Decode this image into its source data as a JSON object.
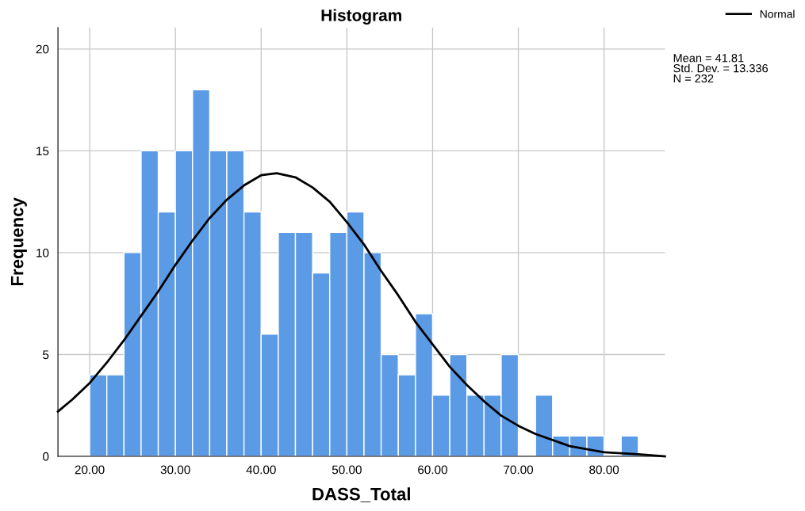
{
  "chart_data": {
    "type": "histogram",
    "title": "Histogram",
    "xlabel": "DASS_Total",
    "ylabel": "Frequency",
    "bins": [
      20,
      22,
      24,
      26,
      28,
      30,
      32,
      34,
      36,
      38,
      40,
      42,
      44,
      46,
      48,
      50,
      52,
      54,
      56,
      58,
      60,
      62,
      64,
      66,
      68,
      70,
      72,
      74,
      76,
      78,
      80,
      82,
      84
    ],
    "values": [
      4,
      4,
      10,
      15,
      12,
      15,
      18,
      15,
      15,
      12,
      6,
      11,
      11,
      9,
      11,
      12,
      10,
      5,
      4,
      7,
      3,
      5,
      3,
      3,
      5,
      0,
      3,
      1,
      1,
      1,
      0,
      1
    ],
    "color": "#5b9be6",
    "series": [
      {
        "type": "line",
        "name": "Normal",
        "color": "#000000",
        "x": [
          16.3,
          18,
          20,
          22,
          24,
          26,
          28,
          30,
          32,
          34,
          36,
          38,
          40,
          41.81,
          44,
          46,
          48,
          50,
          52,
          54,
          56,
          58,
          60,
          62,
          64,
          66,
          68,
          70,
          72,
          76,
          80,
          84,
          87.1
        ],
        "values": [
          2.2,
          2.8,
          3.6,
          4.6,
          5.7,
          6.9,
          8.1,
          9.4,
          10.6,
          11.7,
          12.6,
          13.3,
          13.8,
          13.9,
          13.7,
          13.2,
          12.5,
          11.5,
          10.4,
          9.1,
          7.9,
          6.6,
          5.5,
          4.4,
          3.5,
          2.7,
          2.0,
          1.5,
          1.1,
          0.5,
          0.2,
          0.1,
          0.0
        ]
      }
    ],
    "xlim": [
      16.3,
      87.1
    ],
    "ylim": [
      0,
      21.05
    ],
    "xticks": [
      {
        "value": 20,
        "label": "20.00"
      },
      {
        "value": 30,
        "label": "30.00"
      },
      {
        "value": 40,
        "label": "40.00"
      },
      {
        "value": 50,
        "label": "50.00"
      },
      {
        "value": 60,
        "label": "60.00"
      },
      {
        "value": 70,
        "label": "70.00"
      },
      {
        "value": 80,
        "label": "80.00"
      }
    ],
    "yticks": [
      0,
      5,
      10,
      15,
      20
    ],
    "grid": true,
    "legend": "top right",
    "annotations": [
      "Mean = 41.81",
      "Std. Dev. = 13.336",
      "N = 232"
    ]
  }
}
